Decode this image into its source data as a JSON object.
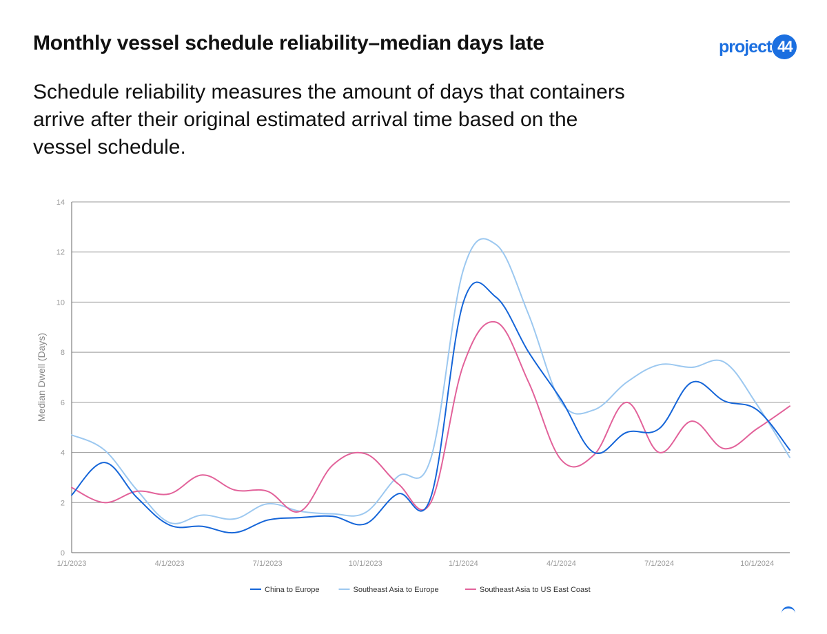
{
  "header": {
    "title": "Monthly vessel schedule reliability–median days late",
    "subtitle": "Schedule reliability measures the amount of days that containers arrive after their original estimated arrival time based on the vessel schedule."
  },
  "logo": {
    "word": "project",
    "number": "44",
    "color": "#1b6fe0"
  },
  "chart_data": {
    "type": "line",
    "title": "",
    "xlabel": "",
    "ylabel": "Median Dwell (Days)",
    "ylim": [
      0,
      14
    ],
    "yticks": [
      "0",
      "2",
      "4",
      "6",
      "8",
      "10",
      "12",
      "14"
    ],
    "xtick_labels": [
      "1/1/2023",
      "4/1/2023",
      "7/1/2023",
      "10/1/2023",
      "1/1/2024",
      "4/1/2024",
      "7/1/2024",
      "10/1/2024"
    ],
    "grid": true,
    "legend": "bottom",
    "x": [
      "2023-01-01",
      "2023-02-01",
      "2023-03-01",
      "2023-04-01",
      "2023-05-01",
      "2023-06-01",
      "2023-07-01",
      "2023-08-01",
      "2023-09-01",
      "2023-10-01",
      "2023-11-01",
      "2023-12-01",
      "2024-01-01",
      "2024-02-01",
      "2024-03-01",
      "2024-04-01",
      "2024-05-01",
      "2024-06-01",
      "2024-07-01",
      "2024-08-01",
      "2024-09-01",
      "2024-10-01",
      "2024-11-01"
    ],
    "series": [
      {
        "name": "China to Europe",
        "color": "#1565d8",
        "values": [
          2.3,
          3.6,
          2.2,
          1.1,
          1.05,
          0.8,
          1.3,
          1.4,
          1.45,
          1.15,
          2.35,
          2.2,
          10.0,
          10.2,
          8.0,
          6.1,
          4.0,
          4.8,
          4.95,
          6.8,
          6.05,
          5.7,
          4.1
        ]
      },
      {
        "name": "Southeast Asia to Europe",
        "color": "#9cc8f0",
        "values": [
          4.7,
          4.1,
          2.5,
          1.2,
          1.5,
          1.35,
          1.95,
          1.65,
          1.55,
          1.6,
          3.05,
          3.75,
          11.3,
          12.3,
          9.5,
          6.0,
          5.7,
          6.8,
          7.5,
          7.4,
          7.6,
          5.9,
          3.8
        ]
      },
      {
        "name": "Southeast Asia to US East Coast",
        "color": "#e2629a",
        "values": [
          2.6,
          2.0,
          2.45,
          2.35,
          3.1,
          2.5,
          2.45,
          1.65,
          3.5,
          3.95,
          2.75,
          2.0,
          7.5,
          9.2,
          6.8,
          3.7,
          3.9,
          6.0,
          4.0,
          5.25,
          4.15,
          4.95,
          5.85
        ]
      }
    ]
  }
}
